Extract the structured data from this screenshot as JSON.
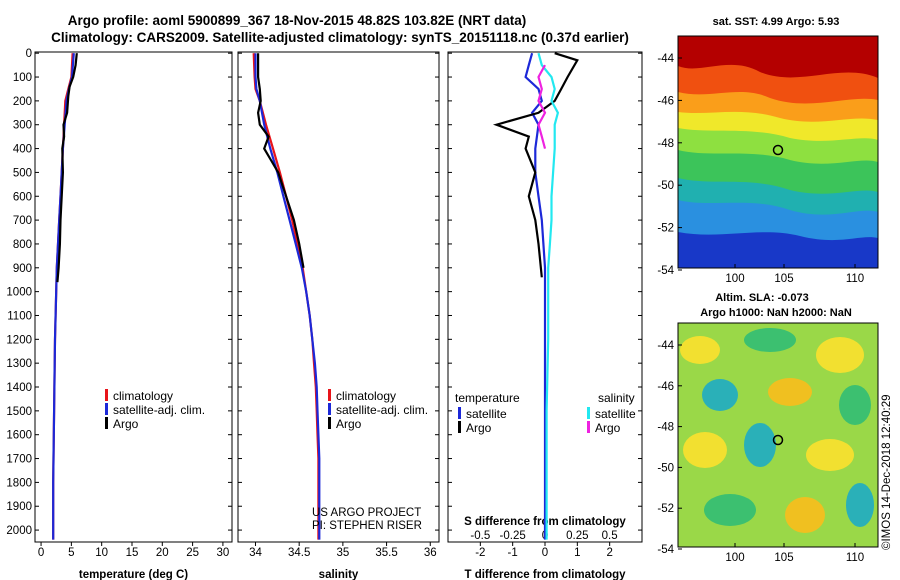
{
  "title": {
    "line1": "Argo profile: aoml 5900899_367 18-Nov-2015 48.82S 103.82E (NRT data)",
    "line2": "Climatology: CARS2009. Satellite-adjusted climatology: synTS_20151118.nc (0.37d earlier)"
  },
  "colors": {
    "climatology": "#e8141a",
    "satellite": "#1c28d8",
    "argo": "#000000",
    "sat_s": "#22e8f0",
    "argo_s": "#ee22e0"
  },
  "chart_data": [
    {
      "type": "line",
      "id": "temperature",
      "xlabel": "temperature (deg C)",
      "ylabel": "",
      "xlim": [
        -1,
        31.5
      ],
      "ylim": [
        2050,
        -5
      ],
      "xticks": [
        0,
        5,
        10,
        15,
        20,
        25,
        30
      ],
      "xticklabels": [
        "0",
        "5",
        "10",
        "15",
        "20",
        "25",
        "30"
      ],
      "yticks": [
        0,
        100,
        200,
        300,
        400,
        500,
        600,
        700,
        800,
        900,
        1000,
        1100,
        1200,
        1300,
        1400,
        1500,
        1600,
        1700,
        1800,
        1900,
        2000
      ],
      "yticklabels": [
        "0",
        "100",
        "200",
        "300",
        "400",
        "500",
        "600",
        "700",
        "800",
        "900",
        "1000",
        "1100",
        "1200",
        "1300",
        "1400",
        "1500",
        "1600",
        "1700",
        "1800",
        "1900",
        "2000"
      ],
      "legend": [
        "climatology",
        "satellite-adj. clim.",
        "Argo"
      ],
      "series": [
        {
          "name": "climatology",
          "color": "#e8141a",
          "x": [
            5.2,
            5.0,
            4.5,
            4.0,
            3.8,
            3.6,
            3.4,
            3.2,
            3.0,
            2.8,
            2.6,
            2.5,
            2.4,
            2.3,
            2.25,
            2.2,
            2.15,
            2.1,
            2.05,
            2.0,
            2.0,
            2.0
          ],
          "y": [
            0,
            100,
            150,
            200,
            300,
            400,
            500,
            600,
            700,
            800,
            900,
            1000,
            1100,
            1200,
            1300,
            1400,
            1500,
            1600,
            1700,
            1800,
            1900,
            2040
          ]
        },
        {
          "name": "satellite-adj. clim.",
          "color": "#1c28d8",
          "x": [
            5.4,
            5.1,
            4.6,
            4.2,
            3.9,
            3.6,
            3.4,
            3.2,
            3.0,
            2.8,
            2.6,
            2.5,
            2.4,
            2.3,
            2.25,
            2.2,
            2.15,
            2.1,
            2.05,
            2.0,
            2.0,
            2.0
          ],
          "y": [
            0,
            100,
            150,
            200,
            300,
            400,
            500,
            600,
            700,
            800,
            900,
            1000,
            1100,
            1200,
            1300,
            1400,
            1500,
            1600,
            1700,
            1800,
            1900,
            2040
          ]
        },
        {
          "name": "Argo",
          "color": "#000000",
          "x": [
            5.9,
            5.7,
            5.3,
            4.7,
            4.5,
            4.3,
            3.7,
            3.8,
            3.5,
            3.6,
            3.4,
            3.2,
            3.1,
            2.9,
            2.7
          ],
          "y": [
            0,
            50,
            100,
            140,
            180,
            250,
            300,
            350,
            400,
            500,
            600,
            700,
            800,
            900,
            960
          ]
        }
      ]
    },
    {
      "type": "line",
      "id": "salinity",
      "xlabel": "salinity",
      "ylabel": "",
      "xlim": [
        33.8,
        36.1
      ],
      "ylim": [
        2050,
        -5
      ],
      "xticks": [
        34,
        34.5,
        35,
        35.5,
        36
      ],
      "xticklabels": [
        "34",
        "34.5",
        "35",
        "35.5",
        "36"
      ],
      "legend": [
        "climatology",
        "satellite-adj. clim.",
        "Argo"
      ],
      "credit": [
        "US ARGO PROJECT",
        "PI: STEPHEN RISER"
      ],
      "series": [
        {
          "name": "climatology",
          "color": "#e8141a",
          "x": [
            33.98,
            33.99,
            34.0,
            34.05,
            34.12,
            34.2,
            34.28,
            34.35,
            34.42,
            34.48,
            34.54,
            34.58,
            34.62,
            34.65,
            34.67,
            34.69,
            34.7,
            34.71,
            34.72,
            34.72,
            34.72,
            34.72
          ],
          "y": [
            0,
            100,
            150,
            200,
            300,
            400,
            500,
            600,
            700,
            800,
            900,
            1000,
            1100,
            1200,
            1300,
            1400,
            1500,
            1600,
            1700,
            1800,
            1900,
            2040
          ]
        },
        {
          "name": "satellite-adj. clim.",
          "color": "#1c28d8",
          "x": [
            34.0,
            34.0,
            34.01,
            34.05,
            34.1,
            34.17,
            34.25,
            34.32,
            34.39,
            34.46,
            34.53,
            34.58,
            34.62,
            34.65,
            34.68,
            34.7,
            34.71,
            34.72,
            34.73,
            34.73,
            34.73,
            34.73
          ],
          "y": [
            0,
            100,
            150,
            200,
            300,
            400,
            500,
            600,
            700,
            800,
            900,
            1000,
            1100,
            1200,
            1300,
            1400,
            1500,
            1600,
            1700,
            1800,
            1900,
            2040
          ]
        },
        {
          "name": "Argo",
          "color": "#000000",
          "x": [
            34.03,
            34.03,
            34.05,
            34.06,
            34.03,
            34.05,
            34.15,
            34.1,
            34.18,
            34.26,
            34.35,
            34.44,
            34.5,
            34.55
          ],
          "y": [
            0,
            100,
            150,
            200,
            250,
            300,
            350,
            400,
            450,
            500,
            600,
            700,
            800,
            900
          ]
        }
      ]
    },
    {
      "type": "line",
      "id": "difference",
      "xlabel": "T difference from climatology",
      "xlabel2": "S difference from climatology",
      "xlim": [
        -3,
        3
      ],
      "ylim": [
        2050,
        -5
      ],
      "xticks": [
        -2,
        -1,
        0,
        1,
        2
      ],
      "xticklabels": [
        "-2",
        "-1",
        "0",
        "1",
        "2"
      ],
      "xticks2": [
        -2,
        -1,
        0,
        1,
        2
      ],
      "xticklabels2": [
        "-0.5",
        "-0.25",
        "0",
        "0.25",
        "0.5"
      ],
      "legend_temperature_title": "temperature",
      "legend_salinity_title": "salinity",
      "legend_temperature": [
        "satellite",
        "Argo"
      ],
      "legend_salinity": [
        "satellite",
        "Argo"
      ],
      "series": [
        {
          "name": "temperature satellite",
          "color": "#1c28d8",
          "x": [
            -0.4,
            -0.5,
            -0.6,
            -0.2,
            -0.1,
            -0.4,
            -0.2,
            -0.3,
            -0.3,
            -0.2,
            -0.1,
            -0.05,
            0.0,
            0.0,
            0.0,
            0.0,
            0.0,
            0.0,
            0.0
          ],
          "y": [
            0,
            50,
            100,
            150,
            200,
            250,
            300,
            400,
            500,
            600,
            700,
            800,
            900,
            1000,
            1200,
            1400,
            1600,
            1800,
            2040
          ]
        },
        {
          "name": "temperature Argo",
          "color": "#000000",
          "x": [
            0.3,
            1.0,
            0.7,
            0.5,
            0.3,
            -0.2,
            -1.5,
            -0.5,
            -0.6,
            -0.3,
            -0.5,
            -0.3,
            -0.2,
            -0.1
          ],
          "y": [
            0,
            30,
            100,
            150,
            200,
            250,
            300,
            350,
            400,
            500,
            600,
            700,
            800,
            940
          ]
        },
        {
          "name": "salinity satellite",
          "color": "#22e8f0",
          "x": [
            -0.2,
            -0.1,
            0.2,
            0.3,
            0.2,
            0.4,
            0.3,
            0.3,
            0.25,
            0.2,
            0.2,
            0.15,
            0.1,
            0.1,
            0.1,
            0.05,
            0.05,
            0.05
          ],
          "y": [
            0,
            50,
            100,
            150,
            200,
            250,
            300,
            400,
            500,
            600,
            700,
            800,
            900,
            1000,
            1200,
            1500,
            1800,
            2040
          ]
        },
        {
          "name": "salinity Argo",
          "color": "#ee22e0",
          "x": [
            0.0,
            -0.2,
            -0.1,
            -0.2,
            0.0,
            -0.2,
            -0.1,
            0.0
          ],
          "y": [
            50,
            100,
            150,
            200,
            250,
            300,
            350,
            400
          ]
        }
      ]
    }
  ],
  "maps": {
    "sst": {
      "title": "sat. SST: 4.99 Argo: 5.93",
      "xticklabels": [
        "100",
        "105",
        "110"
      ],
      "yticklabels": [
        "-44",
        "-46",
        "-48",
        "-50",
        "-52",
        "-54"
      ]
    },
    "sla": {
      "title1": "Altim. SLA: -0.073",
      "title2": "Argo h1000: NaN h2000: NaN",
      "xticklabels": [
        "100",
        "105",
        "110"
      ],
      "yticklabels": [
        "-44",
        "-46",
        "-48",
        "-50",
        "-52",
        "-54"
      ]
    }
  },
  "footer": "©IMOS 14-Dec-2018 12:40:29"
}
